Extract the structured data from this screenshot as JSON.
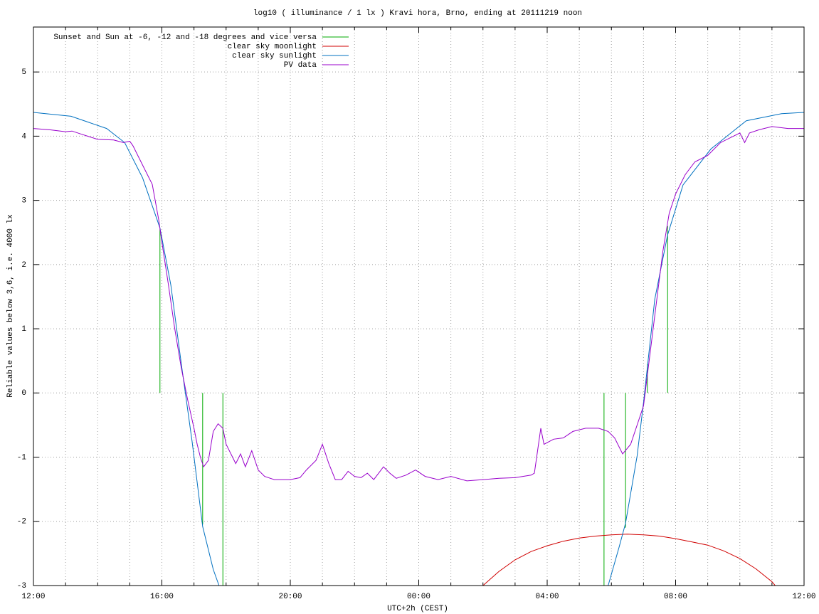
{
  "chart_data": {
    "type": "line",
    "title": "log10 ( illuminance / 1 lx ) Kravi hora, Brno, ending at 20111219 noon",
    "x_label": "UTC+2h (CEST)",
    "y_label": "Reliable values below 3,6, i.e. 4000 lx",
    "xlim": [
      0,
      24
    ],
    "xticks": [
      {
        "value": 0,
        "label": "12:00"
      },
      {
        "value": 4,
        "label": "16:00"
      },
      {
        "value": 8,
        "label": "20:00"
      },
      {
        "value": 12,
        "label": "00:00"
      },
      {
        "value": 16,
        "label": "04:00"
      },
      {
        "value": 20,
        "label": "08:00"
      },
      {
        "value": 24,
        "label": "12:00"
      }
    ],
    "xminorticks": [
      1,
      2,
      3,
      5,
      6,
      7,
      9,
      10,
      11,
      13,
      14,
      15,
      17,
      18,
      19,
      21,
      22,
      23
    ],
    "ylim": [
      -3,
      5.7
    ],
    "yticks": [
      -3,
      -2,
      -1,
      0,
      1,
      2,
      3,
      4,
      5
    ],
    "grid": true,
    "legend": "top-left",
    "series": [
      {
        "name": "Sunset and Sun at -6, -12 and -18 degrees and vice versa",
        "color": "#00aa00",
        "style": "impulses",
        "x": [
          3.94,
          5.27,
          5.9,
          17.77,
          18.44,
          19.12,
          19.75
        ],
        "values": [
          2.55,
          -2.05,
          -3,
          -3,
          -2.1,
          0.45,
          2.6
        ]
      },
      {
        "name": "clear sky moonlight",
        "color": "#d00000",
        "style": "lines",
        "x": [
          14.0,
          14.5,
          15.0,
          15.5,
          16.0,
          16.5,
          17.0,
          17.5,
          18.0,
          18.5,
          19.0,
          19.5,
          20.0,
          20.5,
          21.0,
          21.5,
          22.0,
          22.5,
          23.0,
          23.1
        ],
        "values": [
          -3.0,
          -2.78,
          -2.6,
          -2.47,
          -2.38,
          -2.31,
          -2.26,
          -2.23,
          -2.21,
          -2.2,
          -2.21,
          -2.23,
          -2.27,
          -2.32,
          -2.37,
          -2.46,
          -2.58,
          -2.74,
          -2.94,
          -3.0
        ]
      },
      {
        "name": "clear sky sunlight",
        "color": "#0070c0",
        "style": "lines",
        "x": [
          0,
          1.17,
          2.28,
          2.84,
          3.4,
          3.94,
          4.28,
          4.6,
          4.94,
          5.27,
          5.6,
          5.78,
          12,
          17.9,
          18.24,
          18.44,
          18.8,
          19.0,
          19.35,
          19.75,
          20.23,
          21.1,
          22.2,
          23.3,
          24
        ],
        "values": [
          4.37,
          4.31,
          4.12,
          3.9,
          3.35,
          2.57,
          1.68,
          0.47,
          -0.75,
          -2.08,
          -2.75,
          -3.0,
          null,
          -3.0,
          -2.4,
          -2.03,
          -0.98,
          -0.15,
          1.46,
          2.46,
          3.24,
          3.8,
          4.24,
          4.35,
          4.37
        ]
      },
      {
        "name": "PV data",
        "color": "#9900cc",
        "style": "lines",
        "x": [
          0,
          0.5,
          1.0,
          1.2,
          1.5,
          2.0,
          2.5,
          2.8,
          3.0,
          3.1,
          3.3,
          3.5,
          3.7,
          3.9,
          4.0,
          4.2,
          4.4,
          4.6,
          4.8,
          5.0,
          5.1,
          5.2,
          5.3,
          5.45,
          5.6,
          5.75,
          5.9,
          6.0,
          6.2,
          6.3,
          6.45,
          6.6,
          6.8,
          7.0,
          7.2,
          7.5,
          8.0,
          8.3,
          8.5,
          8.8,
          9.0,
          9.2,
          9.4,
          9.6,
          9.8,
          10.0,
          10.2,
          10.4,
          10.6,
          10.9,
          11.1,
          11.3,
          11.6,
          11.9,
          12.2,
          12.6,
          13.0,
          13.5,
          14.0,
          14.5,
          15.0,
          15.5,
          15.6,
          15.8,
          15.9,
          16.2,
          16.5,
          16.8,
          17.2,
          17.6,
          17.9,
          18.1,
          18.35,
          18.6,
          18.8,
          19.0,
          19.2,
          19.4,
          19.6,
          19.8,
          20.0,
          20.3,
          20.6,
          21.0,
          21.4,
          21.8,
          22.0,
          22.15,
          22.3,
          22.6,
          23.0,
          23.5,
          24
        ],
        "values": [
          4.12,
          4.1,
          4.07,
          4.08,
          4.03,
          3.95,
          3.94,
          3.9,
          3.92,
          3.85,
          3.65,
          3.45,
          3.25,
          2.7,
          2.35,
          1.7,
          1.0,
          0.4,
          -0.1,
          -0.55,
          -0.8,
          -1.0,
          -1.15,
          -1.05,
          -0.6,
          -0.48,
          -0.55,
          -0.8,
          -1.0,
          -1.1,
          -0.95,
          -1.15,
          -0.9,
          -1.2,
          -1.3,
          -1.35,
          -1.35,
          -1.32,
          -1.2,
          -1.05,
          -0.8,
          -1.1,
          -1.35,
          -1.35,
          -1.22,
          -1.3,
          -1.32,
          -1.25,
          -1.35,
          -1.15,
          -1.25,
          -1.33,
          -1.28,
          -1.2,
          -1.3,
          -1.35,
          -1.3,
          -1.37,
          -1.35,
          -1.33,
          -1.32,
          -1.28,
          -1.25,
          -0.55,
          -0.8,
          -0.72,
          -0.7,
          -0.6,
          -0.55,
          -0.55,
          -0.6,
          -0.7,
          -0.95,
          -0.8,
          -0.5,
          -0.2,
          0.6,
          1.4,
          2.2,
          2.8,
          3.1,
          3.4,
          3.6,
          3.7,
          3.9,
          4.0,
          4.05,
          3.9,
          4.05,
          4.1,
          4.15,
          4.12,
          4.12
        ]
      }
    ]
  }
}
